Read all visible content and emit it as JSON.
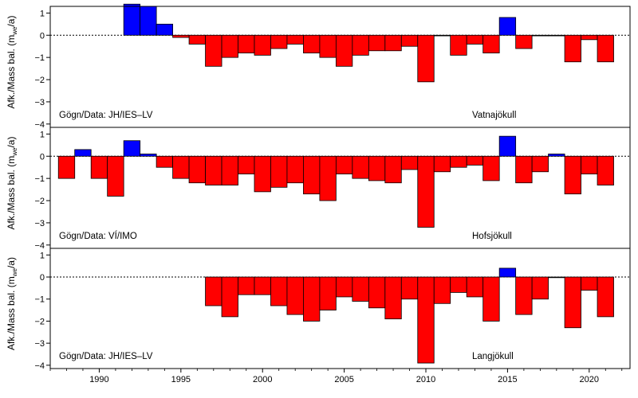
{
  "chart_data": [
    {
      "type": "bar",
      "glacier": "Vatnajökull",
      "data_credit": "Gögn/Data: JH/IES–LV",
      "ylabel_main": "Afk./Mass bal. (m",
      "ylabel_sub": "we",
      "ylabel_end": "/a)",
      "ylim": [
        -4,
        1.5
      ],
      "yticks": [
        "1",
        "0",
        "−1",
        "−2",
        "−3",
        "−4"
      ],
      "zero_line": "dotted",
      "x": [
        1992,
        1993,
        1994,
        1995,
        1996,
        1997,
        1998,
        1999,
        2000,
        2001,
        2002,
        2003,
        2004,
        2005,
        2006,
        2007,
        2008,
        2009,
        2010,
        2011,
        2012,
        2013,
        2014,
        2015,
        2016,
        2017,
        2018,
        2019,
        2020,
        2021
      ],
      "values": [
        1.4,
        1.3,
        0.5,
        -0.1,
        -0.4,
        -1.4,
        -1.0,
        -0.8,
        -0.9,
        -0.6,
        -0.4,
        -0.8,
        -1.0,
        -1.4,
        -0.9,
        -0.7,
        -0.7,
        -0.5,
        -2.1,
        0.0,
        -0.9,
        -0.4,
        -0.8,
        0.8,
        -0.6,
        0.0,
        -0.02,
        -1.2,
        -0.2,
        -1.2
      ]
    },
    {
      "type": "bar",
      "glacier": "Hofsjökull",
      "data_credit": "Gögn/Data: VÍ/IMO",
      "ylabel_main": "Afk./Mass bal. (m",
      "ylabel_sub": "we",
      "ylabel_end": "/a)",
      "ylim": [
        -4,
        1.5
      ],
      "yticks": [
        "1",
        "0",
        "−1",
        "−2",
        "−3",
        "−4"
      ],
      "zero_line": "dotted",
      "x": [
        1988,
        1989,
        1990,
        1991,
        1992,
        1993,
        1994,
        1995,
        1996,
        1997,
        1998,
        1999,
        2000,
        2001,
        2002,
        2003,
        2004,
        2005,
        2006,
        2007,
        2008,
        2009,
        2010,
        2011,
        2012,
        2013,
        2014,
        2015,
        2016,
        2017,
        2018,
        2019,
        2020,
        2021
      ],
      "values": [
        -1.0,
        0.3,
        -1.0,
        -1.8,
        0.7,
        0.1,
        -0.5,
        -1.0,
        -1.2,
        -1.3,
        -1.3,
        -0.8,
        -1.6,
        -1.4,
        -1.2,
        -1.7,
        -2.0,
        -0.8,
        -1.0,
        -1.1,
        -1.2,
        -0.6,
        -3.2,
        -0.7,
        -0.5,
        -0.4,
        -1.1,
        0.9,
        -1.2,
        -0.7,
        0.1,
        -1.7,
        -0.8,
        -1.3
      ]
    },
    {
      "type": "bar",
      "glacier": "Langjökull",
      "data_credit": "Gögn/Data: JH/IES–LV",
      "ylabel_main": "Afk./Mass bal. (m",
      "ylabel_sub": "we",
      "ylabel_end": "/a)",
      "ylim": [
        -4,
        1.5
      ],
      "yticks": [
        "1",
        "0",
        "−1",
        "−2",
        "−3",
        "−4"
      ],
      "zero_line": "dotted",
      "x": [
        1997,
        1998,
        1999,
        2000,
        2001,
        2002,
        2003,
        2004,
        2005,
        2006,
        2007,
        2008,
        2009,
        2010,
        2011,
        2012,
        2013,
        2014,
        2015,
        2016,
        2017,
        2018,
        2019,
        2020,
        2021
      ],
      "values": [
        -1.3,
        -1.8,
        -0.8,
        -0.8,
        -1.3,
        -1.7,
        -2.0,
        -1.5,
        -0.9,
        -1.1,
        -1.4,
        -1.9,
        -1.0,
        -3.9,
        -1.2,
        -0.7,
        -0.9,
        -2.0,
        0.4,
        -1.7,
        -1.0,
        -0.02,
        -2.3,
        -0.6,
        -1.8
      ]
    }
  ],
  "x_axis": {
    "xlim": [
      1987,
      2022.5
    ],
    "ticks": [
      1990,
      1995,
      2000,
      2005,
      2010,
      2015,
      2020
    ]
  },
  "colors": {
    "positive": "#0000ff",
    "negative": "#ff0000",
    "outline": "#000000"
  }
}
